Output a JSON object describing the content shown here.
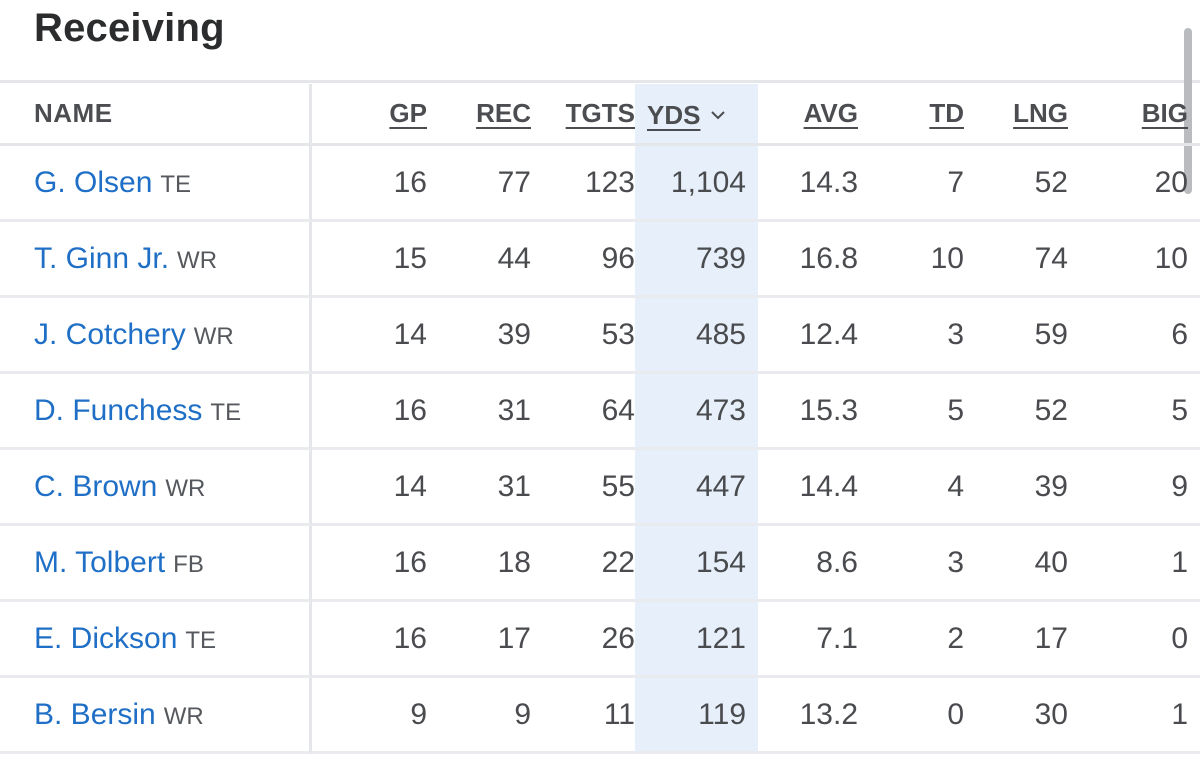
{
  "title": "Receiving",
  "columns": {
    "name": "NAME",
    "gp": "GP",
    "rec": "REC",
    "tgts": "TGTS",
    "yds": "YDS",
    "avg": "AVG",
    "td": "TD",
    "lng": "LNG",
    "big": "BIG"
  },
  "sort": {
    "column": "YDS",
    "direction": "descending",
    "icon": "chevron-down-icon"
  },
  "colors": {
    "link": "#1f6fc6",
    "sorted_bg": "#e7f0fa",
    "text": "#494b4e"
  },
  "players": [
    {
      "name": "G. Olsen",
      "pos": "TE",
      "gp": "16",
      "rec": "77",
      "tgts": "123",
      "yds": "1,104",
      "avg": "14.3",
      "td": "7",
      "lng": "52",
      "big": "20"
    },
    {
      "name": "T. Ginn Jr.",
      "pos": "WR",
      "gp": "15",
      "rec": "44",
      "tgts": "96",
      "yds": "739",
      "avg": "16.8",
      "td": "10",
      "lng": "74",
      "big": "10"
    },
    {
      "name": "J. Cotchery",
      "pos": "WR",
      "gp": "14",
      "rec": "39",
      "tgts": "53",
      "yds": "485",
      "avg": "12.4",
      "td": "3",
      "lng": "59",
      "big": "6"
    },
    {
      "name": "D. Funchess",
      "pos": "TE",
      "gp": "16",
      "rec": "31",
      "tgts": "64",
      "yds": "473",
      "avg": "15.3",
      "td": "5",
      "lng": "52",
      "big": "5"
    },
    {
      "name": "C. Brown",
      "pos": "WR",
      "gp": "14",
      "rec": "31",
      "tgts": "55",
      "yds": "447",
      "avg": "14.4",
      "td": "4",
      "lng": "39",
      "big": "9"
    },
    {
      "name": "M. Tolbert",
      "pos": "FB",
      "gp": "16",
      "rec": "18",
      "tgts": "22",
      "yds": "154",
      "avg": "8.6",
      "td": "3",
      "lng": "40",
      "big": "1"
    },
    {
      "name": "E. Dickson",
      "pos": "TE",
      "gp": "16",
      "rec": "17",
      "tgts": "26",
      "yds": "121",
      "avg": "7.1",
      "td": "2",
      "lng": "17",
      "big": "0"
    },
    {
      "name": "B. Bersin",
      "pos": "WR",
      "gp": "9",
      "rec": "9",
      "tgts": "11",
      "yds": "119",
      "avg": "13.2",
      "td": "0",
      "lng": "30",
      "big": "1"
    }
  ]
}
